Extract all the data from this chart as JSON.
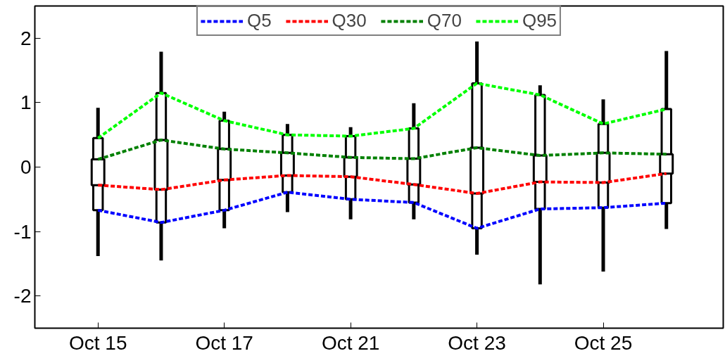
{
  "chart_data": {
    "type": "box",
    "categories": [
      "Oct 15",
      null,
      "Oct 17",
      null,
      "Oct 21",
      null,
      "Oct 23",
      null,
      "Oct 25",
      null
    ],
    "boxes": [
      {
        "low": -1.38,
        "q1": -0.67,
        "q3": 0.45,
        "high": 0.92
      },
      {
        "low": -1.45,
        "q1": -0.86,
        "q3": 1.15,
        "high": 1.79
      },
      {
        "low": -0.95,
        "q1": -0.67,
        "q3": 0.72,
        "high": 0.86
      },
      {
        "low": -0.7,
        "q1": -0.39,
        "q3": 0.5,
        "high": 0.67
      },
      {
        "low": -0.81,
        "q1": -0.5,
        "q3": 0.48,
        "high": 0.62
      },
      {
        "low": -0.81,
        "q1": -0.55,
        "q3": 0.6,
        "high": 0.99
      },
      {
        "low": -1.36,
        "q1": -0.95,
        "q3": 1.3,
        "high": 1.95
      },
      {
        "low": -1.82,
        "q1": -0.65,
        "q3": 1.12,
        "high": 1.27
      },
      {
        "low": -1.62,
        "q1": -0.63,
        "q3": 0.67,
        "high": 1.05
      },
      {
        "low": -0.96,
        "q1": -0.56,
        "q3": 0.9,
        "high": 1.8
      }
    ],
    "series": [
      {
        "type": "bar",
        "color": "#ffffff",
        "base": [
          -0.28,
          -0.35,
          -0.2,
          -0.13,
          -0.15,
          -0.27,
          -0.41,
          -0.23,
          -0.24,
          -0.1
        ],
        "values": [
          0.4,
          0.77,
          0.48,
          0.35,
          0.3,
          0.4,
          0.71,
          0.41,
          0.46,
          0.3
        ]
      },
      {
        "name": "Q5",
        "type": "line",
        "color": "#0000ff",
        "values": [
          -0.67,
          -0.86,
          -0.67,
          -0.39,
          -0.5,
          -0.55,
          -0.95,
          -0.65,
          -0.63,
          -0.56
        ]
      },
      {
        "name": "Q30",
        "type": "line",
        "color": "#ff0000",
        "values": [
          -0.28,
          -0.35,
          -0.2,
          -0.13,
          -0.15,
          -0.27,
          -0.41,
          -0.23,
          -0.24,
          -0.1
        ]
      },
      {
        "name": "Q70",
        "type": "line",
        "color": "#008000",
        "values": [
          0.12,
          0.42,
          0.28,
          0.22,
          0.15,
          0.13,
          0.3,
          0.18,
          0.22,
          0.2
        ]
      },
      {
        "name": "Q95",
        "type": "line",
        "color": "#00ff00",
        "values": [
          0.45,
          1.15,
          0.72,
          0.5,
          0.48,
          0.6,
          1.3,
          1.12,
          0.67,
          0.9
        ]
      }
    ],
    "ylim": [
      -2.5,
      2.5
    ],
    "yticks": [
      -2,
      -1,
      0,
      1,
      2
    ],
    "grid": false,
    "legend": "top",
    "line_style": "dashed",
    "marker": "none"
  }
}
